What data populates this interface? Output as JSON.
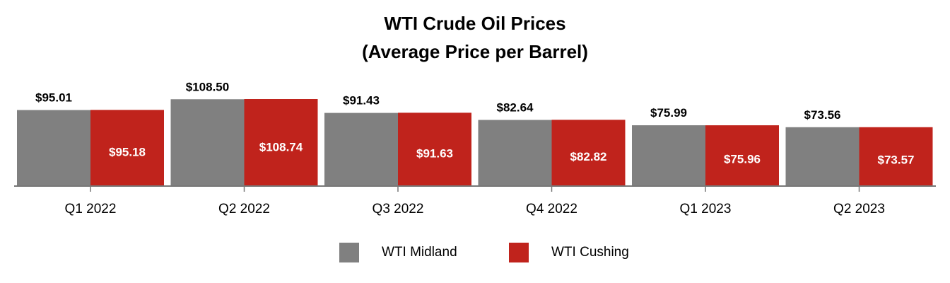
{
  "chart_data": {
    "type": "bar",
    "title": "WTI Crude Oil Prices",
    "subtitle": "(Average Price per Barrel)",
    "categories": [
      "Q1 2022",
      "Q2 2022",
      "Q3 2022",
      "Q4 2022",
      "Q1 2023",
      "Q2 2023"
    ],
    "series": [
      {
        "name": "WTI Midland",
        "color": "#808080",
        "values": [
          95.01,
          108.5,
          91.43,
          82.64,
          75.99,
          73.56
        ],
        "labels": [
          "$95.01",
          "$108.50",
          "$91.43",
          "$82.64",
          "$75.99",
          "$73.56"
        ]
      },
      {
        "name": "WTI Cushing",
        "color": "#C0231C",
        "values": [
          95.18,
          108.74,
          91.63,
          82.82,
          75.96,
          73.57
        ],
        "labels": [
          "$95.18",
          "$108.74",
          "$91.63",
          "$82.82",
          "$75.96",
          "$73.57"
        ]
      }
    ],
    "legend_position": "bottom",
    "grid": false
  }
}
